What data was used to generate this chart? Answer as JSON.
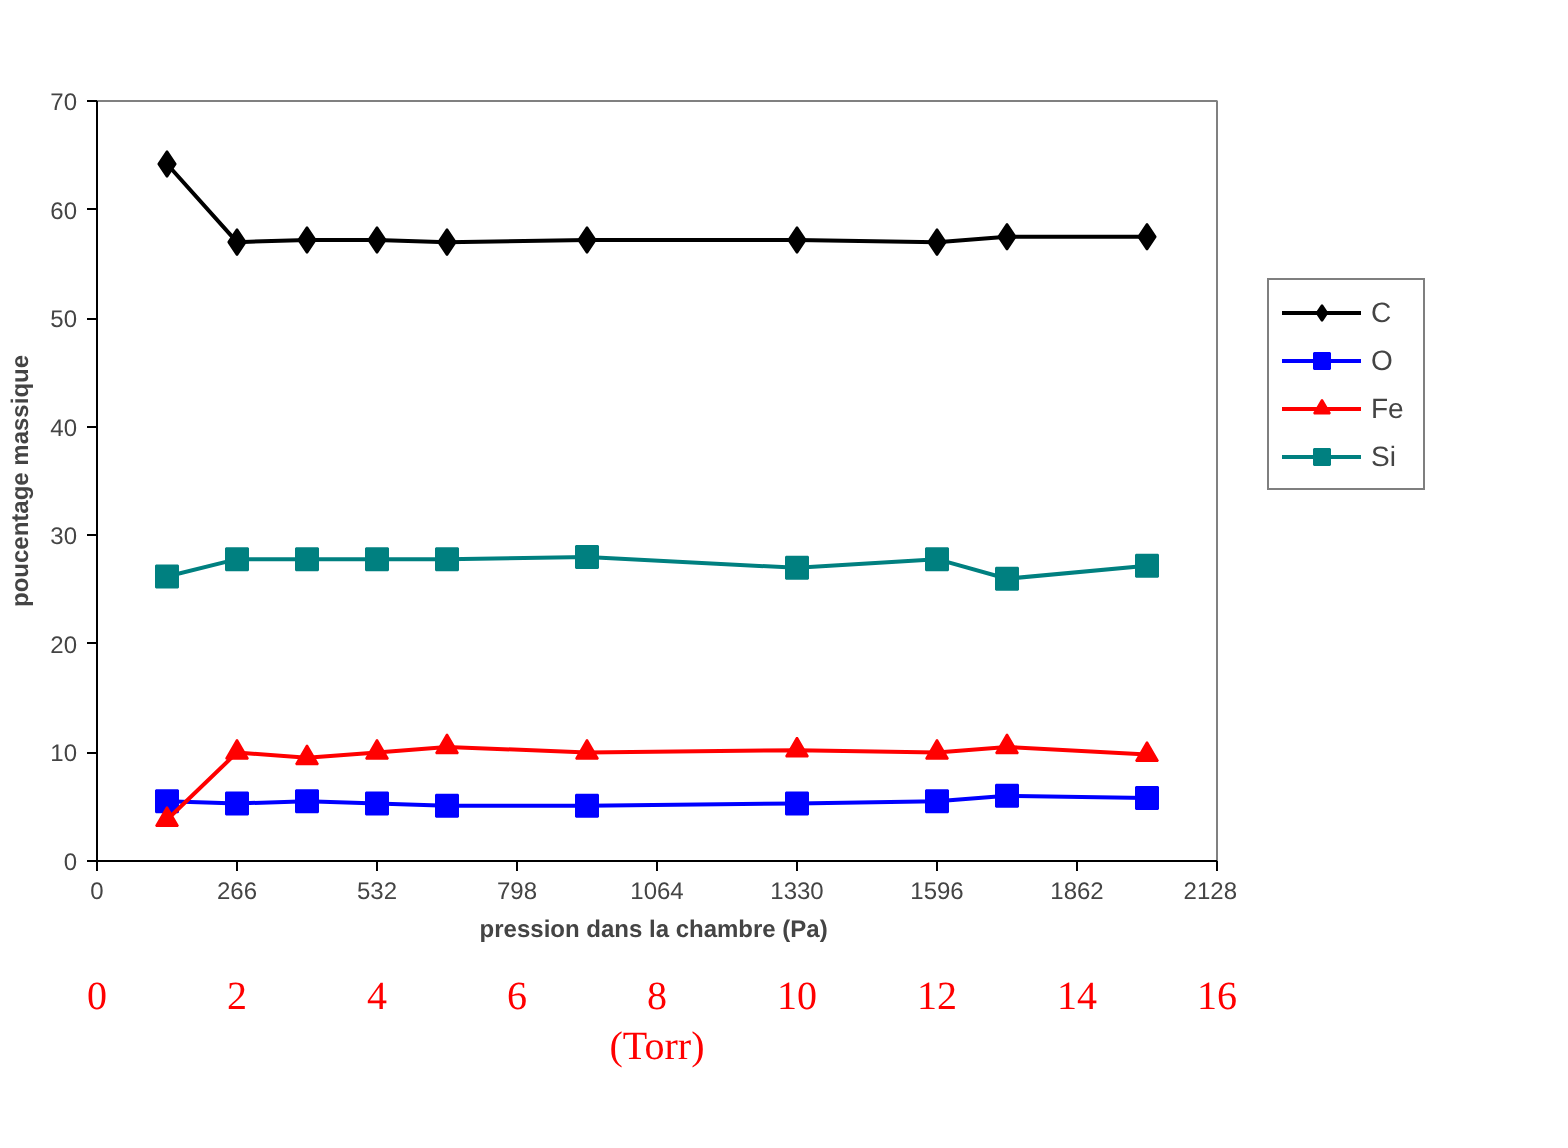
{
  "chart_data": {
    "type": "line",
    "xlabel": "pression dans la chambre  (Pa)",
    "ylabel": "poucentage massique",
    "x": [
      133,
      266,
      399,
      532,
      665,
      931,
      1330,
      1596,
      1729,
      1995
    ],
    "xlim": [
      0,
      2128
    ],
    "xticks": [
      0,
      266,
      532,
      798,
      1064,
      1330,
      1596,
      1862,
      2128
    ],
    "ylim": [
      0,
      70
    ],
    "yticks": [
      0,
      10,
      20,
      30,
      40,
      50,
      60,
      70
    ],
    "x2lim": [
      0,
      16
    ],
    "x2ticks": [
      0,
      2,
      4,
      6,
      8,
      10,
      12,
      14,
      16
    ],
    "x2label": "(Torr)",
    "legend": "right",
    "series": [
      {
        "name": "C",
        "color": "#000000",
        "marker": "diamond",
        "values": [
          64.2,
          57.0,
          57.2,
          57.2,
          57.0,
          57.2,
          57.2,
          57.0,
          57.5,
          57.5
        ]
      },
      {
        "name": "O",
        "color": "#0000ff",
        "marker": "square",
        "values": [
          5.5,
          5.3,
          5.5,
          5.3,
          5.1,
          5.1,
          5.3,
          5.5,
          6.0,
          5.8
        ]
      },
      {
        "name": "Fe",
        "color": "#ff0000",
        "marker": "triangle",
        "values": [
          3.8,
          10.0,
          9.5,
          10.0,
          10.5,
          10.0,
          10.2,
          10.0,
          10.5,
          9.8
        ]
      },
      {
        "name": "Si",
        "color": "#008080",
        "marker": "square",
        "values": [
          26.2,
          27.8,
          27.8,
          27.8,
          27.8,
          28.0,
          27.0,
          27.8,
          26.0,
          27.2
        ]
      }
    ]
  }
}
